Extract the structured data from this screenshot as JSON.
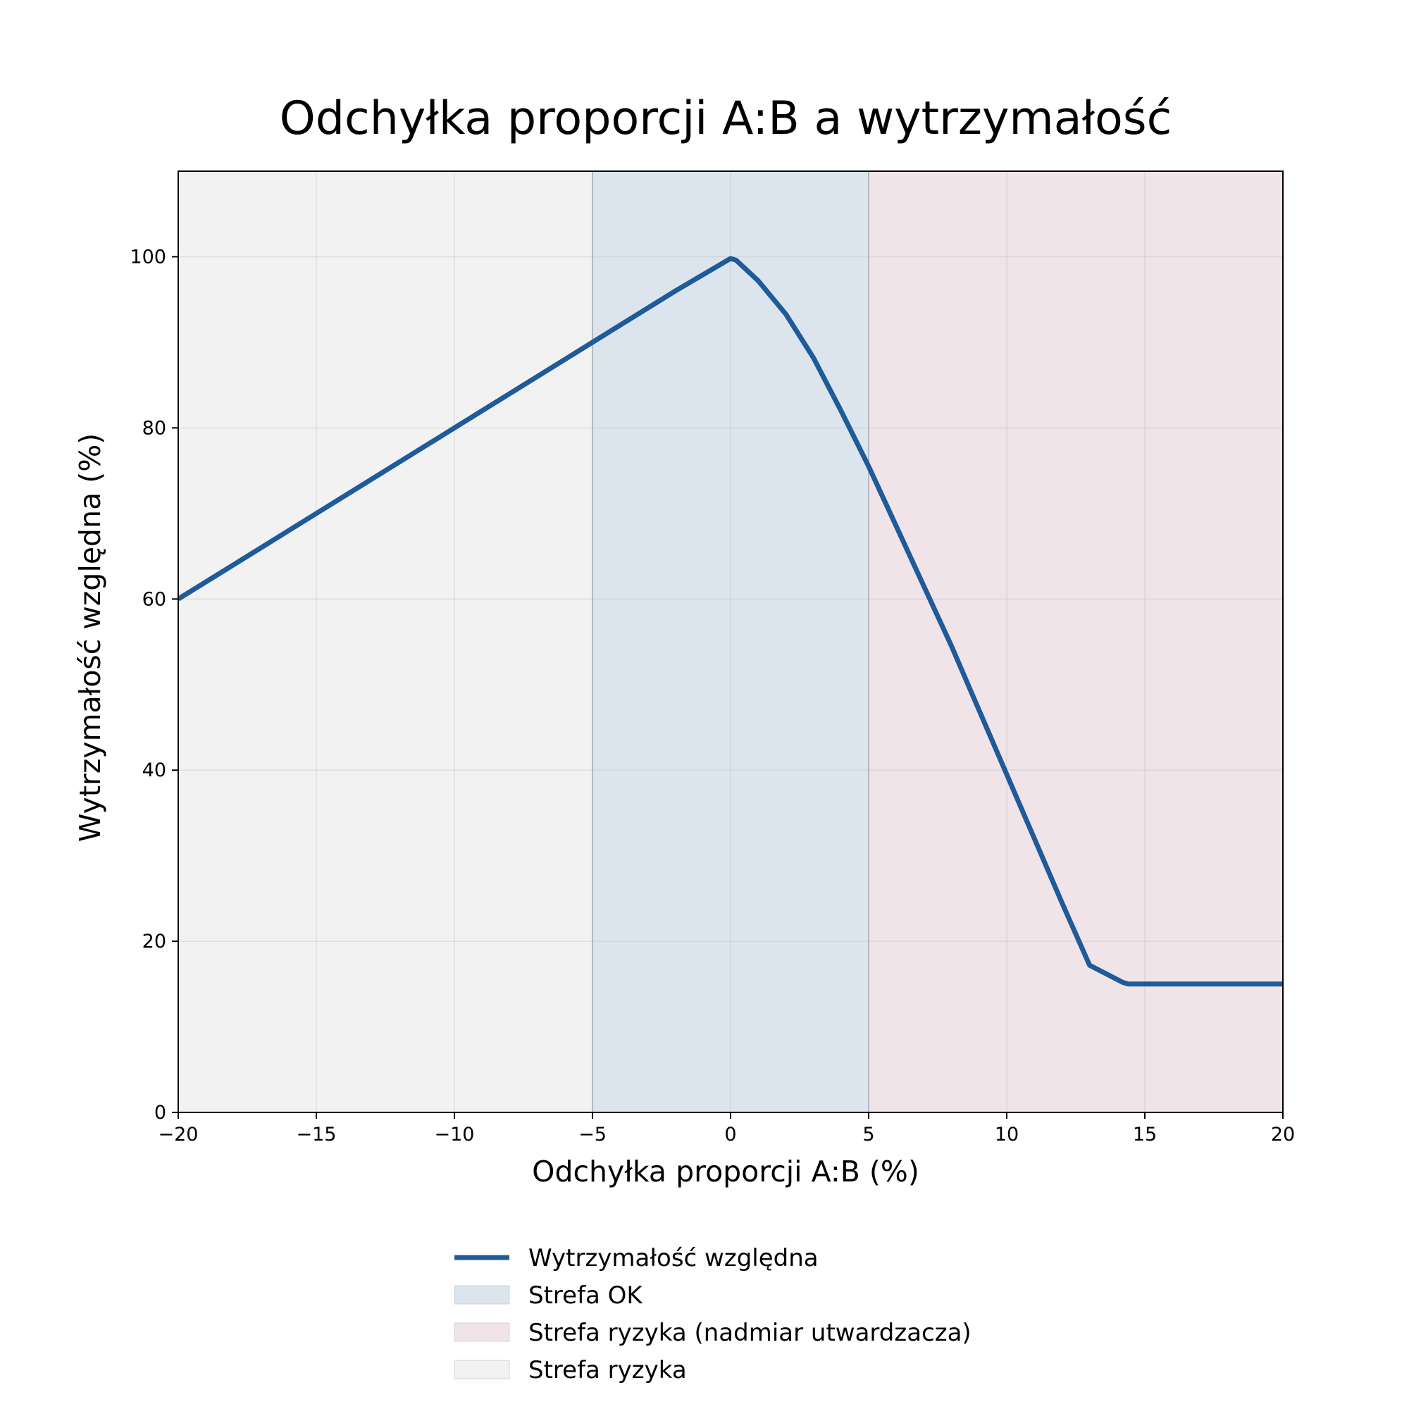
{
  "chart_data": {
    "type": "line",
    "title": "Odchyłka proporcji A:B a wytrzymałość",
    "xlabel": "Odchyłka proporcji A:B (%)",
    "ylabel": "Wytrzymałość względna (%)",
    "xlim": [
      -20,
      20
    ],
    "ylim": [
      0,
      110
    ],
    "xticks": [
      -20,
      -15,
      -10,
      -5,
      0,
      5,
      10,
      15,
      20
    ],
    "xtick_labels": [
      "−20",
      "−15",
      "−10",
      "−5",
      "0",
      "5",
      "10",
      "15",
      "20"
    ],
    "yticks": [
      0,
      20,
      40,
      60,
      80,
      100
    ],
    "ytick_labels": [
      "0",
      "20",
      "40",
      "60",
      "80",
      "100"
    ],
    "grid": true,
    "legend_position": "below",
    "series": [
      {
        "name": "Wytrzymałość względna",
        "color": "#1f5a99",
        "x": [
          -20,
          -15,
          -10,
          -5,
          -2,
          0,
          0.2,
          1,
          2,
          3,
          4,
          5,
          6,
          7,
          8,
          9,
          10,
          11,
          12,
          13,
          14.2,
          14.4,
          15,
          16,
          17,
          18,
          19,
          20
        ],
        "y": [
          60,
          70,
          80,
          90,
          96,
          99.8,
          99.6,
          97.2,
          93.3,
          88.2,
          82,
          75.5,
          68.5,
          61.5,
          54.5,
          47,
          39.5,
          32,
          24.5,
          17.2,
          15.2,
          15,
          15,
          15,
          15,
          15,
          15,
          15
        ]
      }
    ],
    "zones": [
      {
        "name": "Strefa ryzyka",
        "x": [
          -20,
          -5
        ],
        "color": "#f2f2f3"
      },
      {
        "name": "Strefa OK",
        "x": [
          -5,
          5
        ],
        "color": "#dce5ee"
      },
      {
        "name": "Strefa ryzyka (nadmiar utwardzacza)",
        "x": [
          5,
          20
        ],
        "color": "#f0e4e9"
      }
    ],
    "legend": [
      {
        "label": "Wytrzymałość względna",
        "kind": "line",
        "color": "#1f5a99"
      },
      {
        "label": "Strefa OK",
        "kind": "patch",
        "color": "#dce5ee"
      },
      {
        "label": "Strefa ryzyka (nadmiar utwardzacza)",
        "kind": "patch",
        "color": "#f0e4e9"
      },
      {
        "label": "Strefa ryzyka",
        "kind": "patch",
        "color": "#f2f2f3"
      }
    ]
  }
}
